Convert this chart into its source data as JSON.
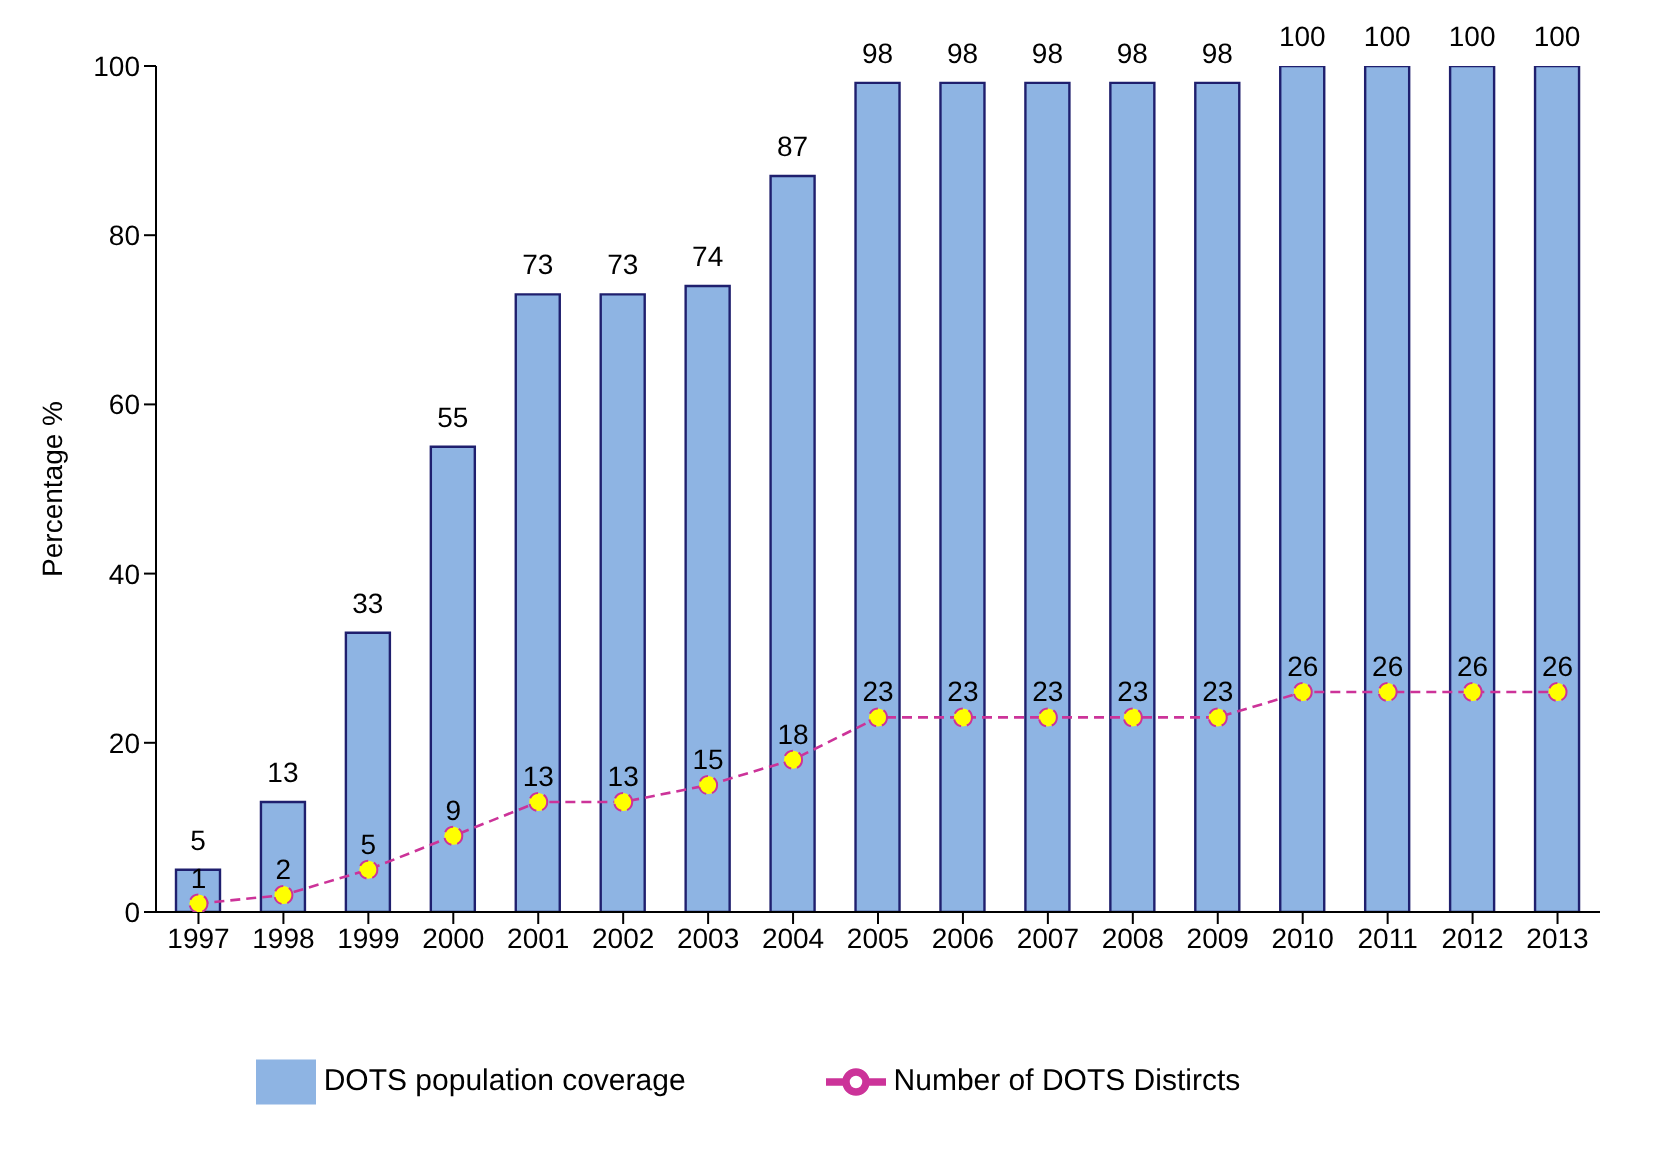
{
  "chart_data": {
    "type": "bar",
    "ylabel": "Percentage %",
    "categories": [
      "1997",
      "1998",
      "1999",
      "2000",
      "2001",
      "2002",
      "2003",
      "2004",
      "2005",
      "2006",
      "2007",
      "2008",
      "2009",
      "2010",
      "2011",
      "2012",
      "2013"
    ],
    "series": [
      {
        "name": "DOTS population coverage",
        "color": "#8eb4e3",
        "values": [
          5,
          13,
          33,
          55,
          73,
          73,
          74,
          87,
          98,
          98,
          98,
          98,
          98,
          100,
          100,
          100,
          100
        ]
      },
      {
        "name": "Number of DOTS Distircts",
        "type": "line",
        "color": "#cc3399",
        "line_style": "dashed",
        "marker": "circle",
        "values": [
          1,
          2,
          5,
          9,
          13,
          13,
          15,
          18,
          23,
          23,
          23,
          23,
          23,
          26,
          26,
          26,
          26
        ]
      }
    ],
    "ylim": [
      0,
      100
    ],
    "yticks": [
      0,
      20,
      40,
      60,
      80,
      100
    ],
    "grid": false,
    "legend": "bottom",
    "data_labels": true
  }
}
